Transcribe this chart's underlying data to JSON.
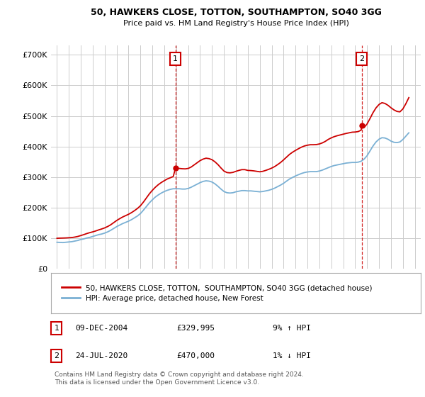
{
  "title": "50, HAWKERS CLOSE, TOTTON, SOUTHAMPTON, SO40 3GG",
  "subtitle": "Price paid vs. HM Land Registry's House Price Index (HPI)",
  "ylabel_ticks": [
    "£0",
    "£100K",
    "£200K",
    "£300K",
    "£400K",
    "£500K",
    "£600K",
    "£700K"
  ],
  "ytick_values": [
    0,
    100000,
    200000,
    300000,
    400000,
    500000,
    600000,
    700000
  ],
  "ylim": [
    0,
    730000
  ],
  "xlim_start": 1994.5,
  "xlim_end": 2025.5,
  "sale1_x": 2004.94,
  "sale1_y": 329995,
  "sale2_x": 2020.56,
  "sale2_y": 470000,
  "red_color": "#cc0000",
  "blue_color": "#7ab0d4",
  "background_color": "#ffffff",
  "grid_color": "#cccccc",
  "legend_label_red": "50, HAWKERS CLOSE, TOTTON,  SOUTHAMPTON, SO40 3GG (detached house)",
  "legend_label_blue": "HPI: Average price, detached house, New Forest",
  "table_row1": [
    "1",
    "09-DEC-2004",
    "£329,995",
    "9% ↑ HPI"
  ],
  "table_row2": [
    "2",
    "24-JUL-2020",
    "£470,000",
    "1% ↓ HPI"
  ],
  "footer": "Contains HM Land Registry data © Crown copyright and database right 2024.\nThis data is licensed under the Open Government Licence v3.0.",
  "hpi_years": [
    1995.0,
    1995.25,
    1995.5,
    1995.75,
    1996.0,
    1996.25,
    1996.5,
    1996.75,
    1997.0,
    1997.25,
    1997.5,
    1997.75,
    1998.0,
    1998.25,
    1998.5,
    1998.75,
    1999.0,
    1999.25,
    1999.5,
    1999.75,
    2000.0,
    2000.25,
    2000.5,
    2000.75,
    2001.0,
    2001.25,
    2001.5,
    2001.75,
    2002.0,
    2002.25,
    2002.5,
    2002.75,
    2003.0,
    2003.25,
    2003.5,
    2003.75,
    2004.0,
    2004.25,
    2004.5,
    2004.75,
    2005.0,
    2005.25,
    2005.5,
    2005.75,
    2006.0,
    2006.25,
    2006.5,
    2006.75,
    2007.0,
    2007.25,
    2007.5,
    2007.75,
    2008.0,
    2008.25,
    2008.5,
    2008.75,
    2009.0,
    2009.25,
    2009.5,
    2009.75,
    2010.0,
    2010.25,
    2010.5,
    2010.75,
    2011.0,
    2011.25,
    2011.5,
    2011.75,
    2012.0,
    2012.25,
    2012.5,
    2012.75,
    2013.0,
    2013.25,
    2013.5,
    2013.75,
    2014.0,
    2014.25,
    2014.5,
    2014.75,
    2015.0,
    2015.25,
    2015.5,
    2015.75,
    2016.0,
    2016.25,
    2016.5,
    2016.75,
    2017.0,
    2017.25,
    2017.5,
    2017.75,
    2018.0,
    2018.25,
    2018.5,
    2018.75,
    2019.0,
    2019.25,
    2019.5,
    2019.75,
    2020.0,
    2020.25,
    2020.5,
    2020.75,
    2021.0,
    2021.25,
    2021.5,
    2021.75,
    2022.0,
    2022.25,
    2022.5,
    2022.75,
    2023.0,
    2023.25,
    2023.5,
    2023.75,
    2024.0,
    2024.25,
    2024.5
  ],
  "hpi_values": [
    87000,
    86500,
    86000,
    87000,
    88000,
    89000,
    91000,
    93000,
    96000,
    98000,
    101000,
    103000,
    106000,
    109000,
    112000,
    114000,
    117000,
    121000,
    126000,
    132000,
    138000,
    143000,
    148000,
    152000,
    156000,
    161000,
    167000,
    173000,
    181000,
    192000,
    204000,
    216000,
    226000,
    235000,
    242000,
    248000,
    253000,
    257000,
    260000,
    262000,
    262000,
    262000,
    261000,
    261000,
    263000,
    267000,
    272000,
    277000,
    282000,
    286000,
    288000,
    287000,
    284000,
    278000,
    270000,
    261000,
    253000,
    249000,
    248000,
    249000,
    252000,
    254000,
    256000,
    256000,
    255000,
    255000,
    254000,
    253000,
    252000,
    253000,
    255000,
    257000,
    260000,
    264000,
    269000,
    274000,
    280000,
    287000,
    294000,
    299000,
    304000,
    308000,
    312000,
    315000,
    317000,
    318000,
    318000,
    318000,
    320000,
    323000,
    327000,
    331000,
    335000,
    338000,
    340000,
    342000,
    344000,
    346000,
    347000,
    348000,
    348000,
    349000,
    352000,
    359000,
    370000,
    386000,
    402000,
    415000,
    424000,
    429000,
    428000,
    424000,
    418000,
    414000,
    413000,
    415000,
    423000,
    434000,
    445000
  ],
  "red_years": [
    1995.0,
    1995.25,
    1995.5,
    1995.75,
    1996.0,
    1996.25,
    1996.5,
    1996.75,
    1997.0,
    1997.25,
    1997.5,
    1997.75,
    1998.0,
    1998.25,
    1998.5,
    1998.75,
    1999.0,
    1999.25,
    1999.5,
    1999.75,
    2000.0,
    2000.25,
    2000.5,
    2000.75,
    2001.0,
    2001.25,
    2001.5,
    2001.75,
    2002.0,
    2002.25,
    2002.5,
    2002.75,
    2003.0,
    2003.25,
    2003.5,
    2003.75,
    2004.0,
    2004.25,
    2004.5,
    2004.75,
    2004.94,
    2005.0,
    2005.25,
    2005.5,
    2005.75,
    2006.0,
    2006.25,
    2006.5,
    2006.75,
    2007.0,
    2007.25,
    2007.5,
    2007.75,
    2008.0,
    2008.25,
    2008.5,
    2008.75,
    2009.0,
    2009.25,
    2009.5,
    2009.75,
    2010.0,
    2010.25,
    2010.5,
    2010.75,
    2011.0,
    2011.25,
    2011.5,
    2011.75,
    2012.0,
    2012.25,
    2012.5,
    2012.75,
    2013.0,
    2013.25,
    2013.5,
    2013.75,
    2014.0,
    2014.25,
    2014.5,
    2014.75,
    2015.0,
    2015.25,
    2015.5,
    2015.75,
    2016.0,
    2016.25,
    2016.5,
    2016.75,
    2017.0,
    2017.25,
    2017.5,
    2017.75,
    2018.0,
    2018.25,
    2018.5,
    2018.75,
    2019.0,
    2019.25,
    2019.5,
    2019.75,
    2020.0,
    2020.25,
    2020.5,
    2020.56,
    2020.75,
    2021.0,
    2021.25,
    2021.5,
    2021.75,
    2022.0,
    2022.25,
    2022.5,
    2022.75,
    2023.0,
    2023.25,
    2023.5,
    2023.75,
    2024.0,
    2024.25,
    2024.5
  ],
  "red_values": [
    100000,
    100500,
    100800,
    101200,
    101800,
    102500,
    104000,
    106000,
    109000,
    112000,
    115500,
    118500,
    121000,
    124000,
    127500,
    130500,
    134000,
    138500,
    144000,
    151000,
    158000,
    164000,
    169500,
    174000,
    178500,
    184000,
    190500,
    197500,
    206500,
    218500,
    232000,
    245500,
    257000,
    267000,
    275500,
    282500,
    288500,
    294000,
    298000,
    302000,
    329995,
    329000,
    328500,
    327500,
    327000,
    328500,
    333000,
    340000,
    347000,
    354000,
    359000,
    362000,
    360500,
    357000,
    350000,
    341000,
    330000,
    320000,
    315000,
    314000,
    315500,
    319000,
    322000,
    324500,
    324500,
    322000,
    321500,
    320500,
    319000,
    317500,
    319000,
    322000,
    325500,
    329500,
    334500,
    341000,
    348000,
    356500,
    365500,
    374500,
    381500,
    387500,
    393000,
    398000,
    402000,
    404500,
    406000,
    406000,
    406500,
    408500,
    412000,
    417000,
    423500,
    428500,
    432500,
    435500,
    438000,
    440500,
    443000,
    445000,
    447000,
    447500,
    449000,
    453500,
    470000,
    462000,
    474000,
    492000,
    511000,
    526500,
    537500,
    543500,
    541000,
    535000,
    527000,
    520000,
    515000,
    513500,
    523000,
    540000,
    560000
  ]
}
